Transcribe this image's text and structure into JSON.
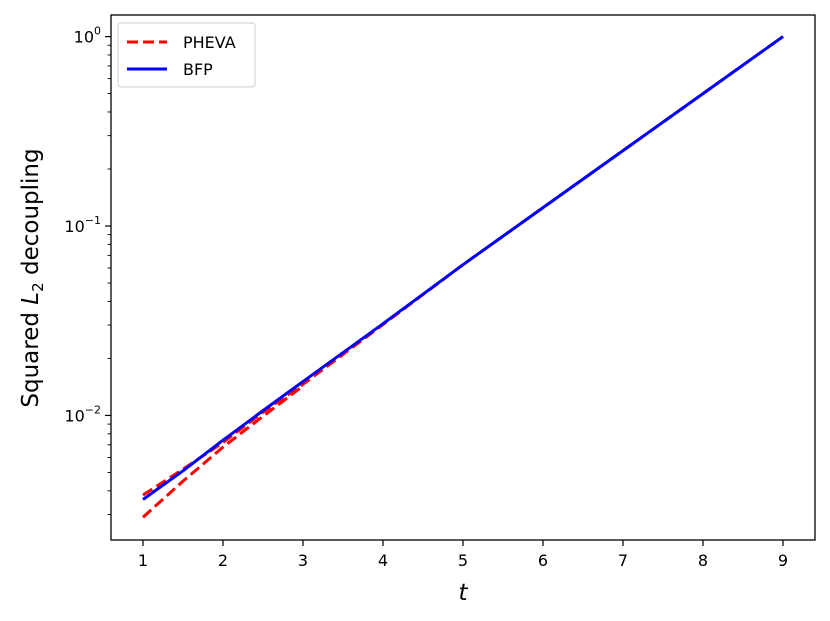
{
  "chart_data": {
    "type": "line",
    "xlabel": "t",
    "ylabel": {
      "prefix": "Squared ",
      "math": "L",
      "subscript": "2",
      "suffix": " decoupling"
    },
    "x_ticks": [
      1,
      2,
      3,
      4,
      5,
      6,
      7,
      8,
      9
    ],
    "y_ticks": [
      {
        "value": 0.01,
        "base": "10",
        "exponent": "−2"
      },
      {
        "value": 0.1,
        "base": "10",
        "exponent": "−1"
      },
      {
        "value": 1,
        "base": "10",
        "exponent": "0"
      }
    ],
    "xlim": [
      0.6,
      9.4
    ],
    "ylim": [
      0.0022,
      1.3
    ],
    "yscale": "log",
    "grid": false,
    "legend_position": "top-left",
    "series": [
      {
        "name": "PHEVA",
        "color": "#ff0000",
        "linestyle": "dashed",
        "segments": [
          {
            "x": [
              1,
              1.5,
              2,
              2.5,
              3,
              4,
              5,
              6,
              7,
              8,
              9
            ],
            "y": [
              0.0038,
              0.0052,
              0.0072,
              0.0104,
              0.0146,
              0.0302,
              0.0625,
              0.125,
              0.25,
              0.5,
              1.0
            ]
          },
          {
            "x": [
              1,
              1.5,
              2,
              2.5,
              3
            ],
            "y": [
              0.0029,
              0.0045,
              0.0068,
              0.0099,
              0.0143
            ]
          }
        ]
      },
      {
        "name": "BFP",
        "color": "#0000ff",
        "linestyle": "solid",
        "segments": [
          {
            "x": [
              1,
              1.5,
              2,
              2.5,
              3,
              4,
              5,
              6,
              7,
              8,
              9
            ],
            "y": [
              0.0036,
              0.0051,
              0.0074,
              0.0106,
              0.0151,
              0.0305,
              0.0625,
              0.125,
              0.25,
              0.5,
              1.0
            ]
          }
        ]
      }
    ]
  }
}
